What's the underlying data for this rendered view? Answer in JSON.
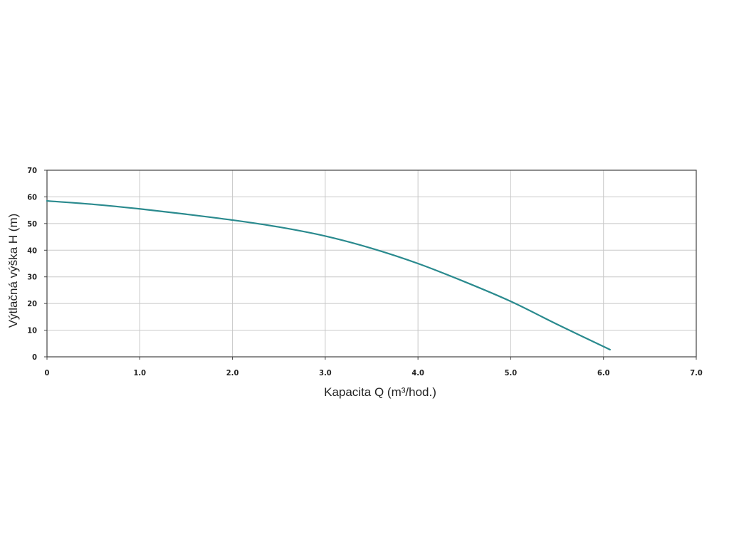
{
  "chart_data": {
    "type": "line",
    "title": "",
    "xlabel": "Kapacita Q  (m³/hod.)",
    "ylabel": "Výtlačná výška H (m)",
    "xlim": [
      0,
      7
    ],
    "ylim": [
      0,
      70
    ],
    "x_ticks": [
      "0",
      "1.0",
      "2.0",
      "3.0",
      "4.0",
      "5.0",
      "6.0",
      "7.0"
    ],
    "y_ticks": [
      "0",
      "10",
      "20",
      "30",
      "40",
      "50",
      "60",
      "70"
    ],
    "grid": true,
    "legend": "none",
    "colors": {
      "curve": "#2a8a8e",
      "grid": "#c8c8c8",
      "frame": "#444444"
    },
    "series": [
      {
        "x": [
          0,
          0.5,
          1.0,
          1.5,
          2.0,
          2.5,
          3.0,
          3.5,
          4.0,
          4.5,
          5.0,
          5.5,
          6.07
        ],
        "y": [
          58.5,
          57.2,
          55.5,
          53.5,
          51.3,
          48.7,
          45.3,
          40.7,
          35.0,
          28.2,
          20.8,
          12.2,
          2.7
        ]
      }
    ]
  }
}
